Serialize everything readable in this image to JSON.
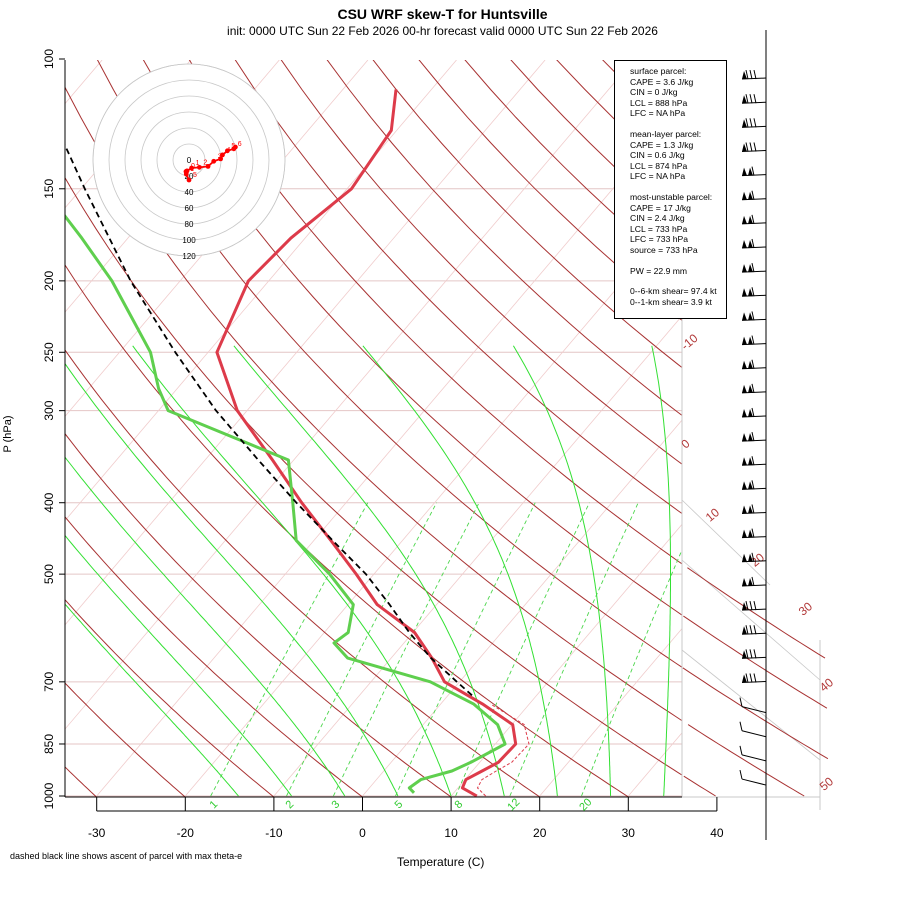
{
  "header": {
    "title": "CSU WRF skew-T for Huntsville",
    "subtitle": "init: 0000 UTC Sun 22 Feb 2026    00-hr forecast valid 0000 UTC Sun 22 Feb 2026"
  },
  "footnote": "dashed black line shows ascent of parcel with max theta-e",
  "chart_data": {
    "type": "line",
    "xlabel": "Temperature (C)",
    "ylabel": "P (hPa)",
    "pressure_axis": {
      "scale": "log",
      "range": [
        1000,
        100
      ],
      "ticks": [
        1000,
        850,
        700,
        500,
        400,
        300,
        250,
        200,
        150,
        100
      ]
    },
    "temperature_axis": {
      "range": [
        -33,
        45
      ],
      "ticks": [
        -30,
        -20,
        -10,
        0,
        10,
        20,
        30,
        40
      ]
    },
    "skew": "45-degree skewed isotherms",
    "grid": true,
    "isotherm_labels": [
      -10,
      0,
      10,
      20,
      30,
      40,
      50
    ],
    "mixing_ratio_labels": [
      "1",
      "2",
      "3",
      "5",
      "8",
      "12",
      "20"
    ],
    "series": [
      {
        "name": "",
        "color": "#dd3b4a",
        "pressure": [
          1000,
          975,
          950,
          925,
          900,
          850,
          800,
          750,
          700,
          650,
          600,
          550,
          500,
          450,
          400,
          350,
          300,
          250,
          200,
          175,
          150,
          125,
          110
        ],
        "values": [
          12.9,
          10.5,
          10.1,
          11.1,
          12.1,
          12.3,
          10.1,
          4.7,
          -1.7,
          -5.4,
          -9.8,
          -16.7,
          -22.0,
          -28.1,
          -35.0,
          -42.4,
          -51.1,
          -59.0,
          -62.3,
          -61.6,
          -59.5,
          -60.6,
          -64.0
        ]
      },
      {
        "name": "",
        "color": "#5fcf4e",
        "pressure": [
          990,
          975,
          950,
          925,
          900,
          850,
          800,
          750,
          700,
          650,
          620,
          600,
          550,
          500,
          450,
          400,
          350,
          300,
          280,
          250,
          200,
          175,
          150
        ],
        "values": [
          5.5,
          4.5,
          5.0,
          7.7,
          9.0,
          11.1,
          8.4,
          3.7,
          -3.3,
          -14.9,
          -17.9,
          -17.3,
          -19.4,
          -25.0,
          -32.0,
          -36.0,
          -40.6,
          -58.9,
          -62.1,
          -66.5,
          -77.7,
          -85.2,
          -94.2
        ]
      },
      {
        "name": "",
        "color": "#000000",
        "dash": "6,4",
        "pressure": [
          730,
          700,
          650,
          600,
          550,
          500,
          450,
          400,
          350,
          300,
          250,
          200,
          150,
          125,
          110
        ],
        "values": [
          2.7,
          -0.3,
          -5.5,
          -10.4,
          -15.3,
          -20.9,
          -27.9,
          -35.6,
          -44.0,
          -53.5,
          -63.7,
          -75.6,
          -89.6,
          -98.2,
          -104.7
        ]
      }
    ],
    "hodograph": {
      "rings": [
        0,
        20,
        40,
        60,
        80,
        100,
        120
      ],
      "point_labels": [
        "1",
        "5",
        "0",
        "1",
        "2",
        "3",
        "4",
        "5",
        "6"
      ],
      "u": [
        0,
        -3.4,
        -3.8,
        -2.5,
        3.3,
        13.0,
        23.8,
        30.9,
        39.5,
        41.8,
        48.0,
        56.0,
        58.0
      ],
      "v": [
        -25.0,
        -17.7,
        -14.4,
        -13.6,
        -10.0,
        -9.2,
        -8.0,
        -1.6,
        1.4,
        6.3,
        11.5,
        14.0,
        16.2
      ],
      "color": "#ff0000"
    },
    "wind_barbs": {
      "pressure_range": [
        1000,
        100
      ],
      "count": 30
    }
  },
  "indices": {
    "groups": [
      {
        "title": "surface parcel:",
        "lines": [
          "CAPE = 3.6 J/kg",
          "CIN = 0 J/kg",
          "LCL = 888 hPa",
          "LFC = NA hPa"
        ]
      },
      {
        "title": "mean-layer parcel:",
        "lines": [
          "CAPE = 1.3 J/kg",
          "CIN = 0.6 J/kg",
          "LCL = 874 hPa",
          "LFC = NA hPa"
        ]
      },
      {
        "title": "most-unstable parcel:",
        "lines": [
          "CAPE = 17 J/kg",
          "CIN = 2.4 J/kg",
          "LCL = 733 hPa",
          "LFC = 733 hPa",
          "source = 733 hPa"
        ]
      },
      {
        "title": "",
        "lines": [
          "PW =  22.9 mm"
        ]
      },
      {
        "title": "",
        "lines": [
          "0--6-km shear= 97.4 kt",
          "0--1-km shear= 3.9 kt"
        ]
      }
    ]
  }
}
